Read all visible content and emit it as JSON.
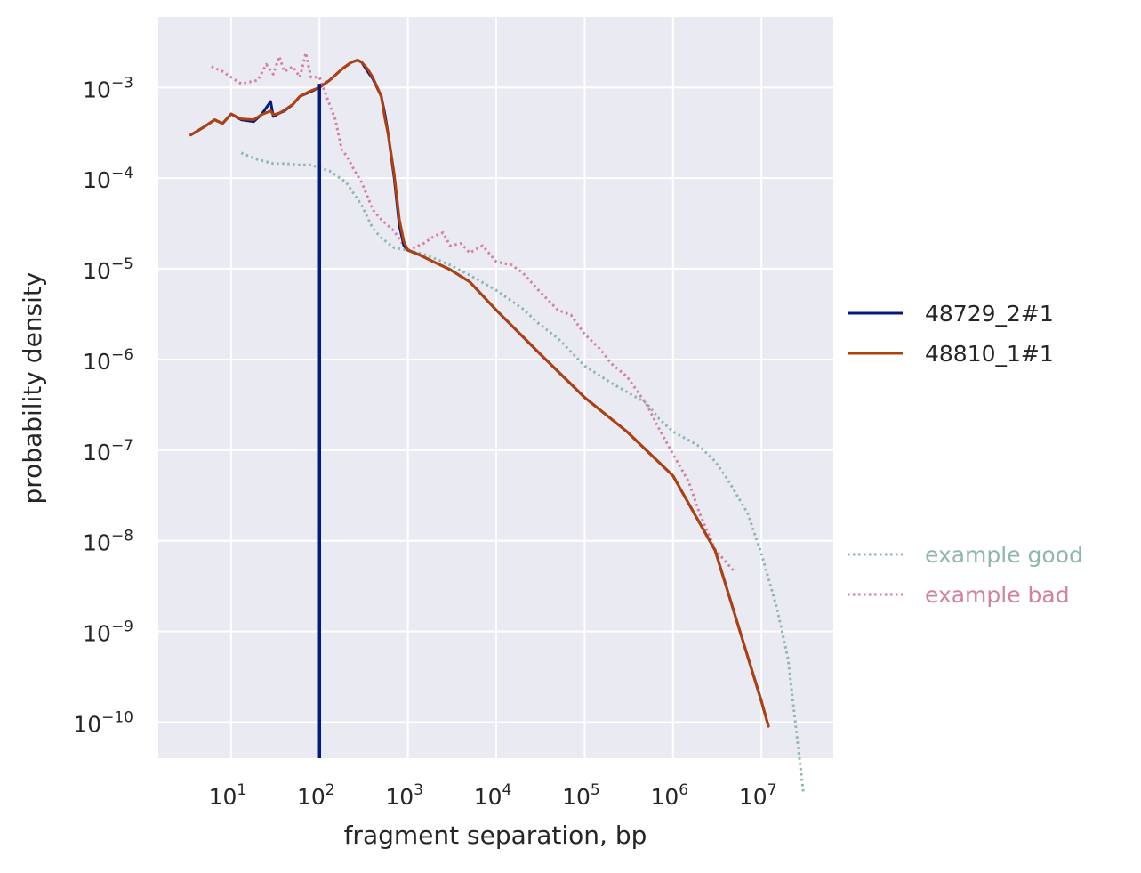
{
  "chart_data": {
    "type": "line",
    "title": "",
    "xlabel": "fragment separation, bp",
    "ylabel": "probability density",
    "x_scale": "log",
    "y_scale": "log",
    "xlim": [
      1.5,
      65000000
    ],
    "ylim": [
      4e-11,
      0.006
    ],
    "grid": true,
    "x_ticks": [
      {
        "base": "10",
        "exp": "1",
        "value": 10
      },
      {
        "base": "10",
        "exp": "2",
        "value": 100
      },
      {
        "base": "10",
        "exp": "3",
        "value": 1000
      },
      {
        "base": "10",
        "exp": "4",
        "value": 10000
      },
      {
        "base": "10",
        "exp": "5",
        "value": 100000
      },
      {
        "base": "10",
        "exp": "6",
        "value": 1000000
      },
      {
        "base": "10",
        "exp": "7",
        "value": 10000000
      }
    ],
    "y_ticks": [
      {
        "base": "10",
        "exp": "−3",
        "value": 0.001
      },
      {
        "base": "10",
        "exp": "−4",
        "value": 0.0001
      },
      {
        "base": "10",
        "exp": "−5",
        "value": 1e-05
      },
      {
        "base": "10",
        "exp": "−6",
        "value": 1e-06
      },
      {
        "base": "10",
        "exp": "−7",
        "value": 1e-07
      },
      {
        "base": "10",
        "exp": "−8",
        "value": 1e-08
      },
      {
        "base": "10",
        "exp": "−9",
        "value": 1e-09
      },
      {
        "base": "10",
        "exp": "−10",
        "value": 1e-10
      }
    ],
    "vertical_line": {
      "x": 100,
      "color": "#001c7f"
    },
    "legend": {
      "placement": "right",
      "groups": [
        [
          "48729_2#1",
          "48810_1#1"
        ],
        [
          "example good",
          "example bad"
        ]
      ]
    },
    "series": [
      {
        "name": "48729_2#1",
        "color": "#001c7f",
        "style": "solid",
        "x": [
          3.5,
          5,
          6.5,
          8,
          10,
          13,
          18,
          22,
          28,
          30,
          35,
          40,
          50,
          60,
          80,
          100,
          130,
          180,
          230,
          270,
          300,
          350,
          400,
          500,
          550,
          600,
          700,
          800,
          900,
          1000,
          1300,
          2000,
          3000,
          5000,
          10000,
          30000,
          100000,
          300000,
          1000000,
          3000000,
          10000000,
          12000000
        ],
        "y": [
          0.0003,
          0.00037,
          0.00044,
          0.0004,
          0.00051,
          0.00044,
          0.00042,
          0.0005,
          0.0007,
          0.00048,
          0.00052,
          0.00055,
          0.00065,
          0.0008,
          0.0009,
          0.001,
          0.0012,
          0.0016,
          0.0019,
          0.002,
          0.0019,
          0.0015,
          0.00125,
          0.0008,
          0.0005,
          0.0003,
          0.0001,
          3e-05,
          1.8e-05,
          1.6e-05,
          1.45e-05,
          1.18e-05,
          9.8e-06,
          7.2e-06,
          3.5e-06,
          1.2e-06,
          3.8e-07,
          1.6e-07,
          5.2e-08,
          7.8e-09,
          1.7e-10,
          9e-11
        ]
      },
      {
        "name": "48810_1#1",
        "color": "#b1400d",
        "style": "solid",
        "x": [
          3.5,
          5,
          6.5,
          8,
          10,
          13,
          18,
          22,
          28,
          30,
          35,
          40,
          50,
          60,
          80,
          100,
          130,
          180,
          230,
          270,
          300,
          350,
          400,
          500,
          550,
          600,
          700,
          800,
          900,
          1000,
          1300,
          2000,
          3000,
          5000,
          10000,
          30000,
          100000,
          300000,
          1000000,
          3000000,
          10000000,
          12000000
        ],
        "y": [
          0.0003,
          0.00037,
          0.00044,
          0.0004,
          0.00051,
          0.00045,
          0.00044,
          0.0005,
          0.00055,
          0.0005,
          0.00052,
          0.00056,
          0.00065,
          0.0008,
          0.00092,
          0.001,
          0.0012,
          0.0016,
          0.0019,
          0.002,
          0.0019,
          0.0016,
          0.0013,
          0.0008,
          0.00045,
          0.0003,
          0.00011,
          3.5e-05,
          2e-05,
          1.6e-05,
          1.45e-05,
          1.18e-05,
          9.8e-06,
          7.2e-06,
          3.5e-06,
          1.2e-06,
          3.8e-07,
          1.6e-07,
          5.2e-08,
          7.8e-09,
          1.7e-10,
          9e-11
        ]
      },
      {
        "name": "example good",
        "color": "#8fb6b0",
        "style": "dotted",
        "x": [
          13,
          20,
          30,
          40,
          60,
          80,
          100,
          130,
          200,
          300,
          400,
          500,
          700,
          1000,
          1500,
          2000,
          3000,
          5000,
          10000,
          20000,
          30000,
          50000,
          100000,
          200000,
          500000,
          700000,
          1000000,
          2000000,
          3000000,
          4000000,
          5000000,
          7000000,
          10000000,
          15000000,
          20000000,
          30000000
        ],
        "y": [
          0.00019,
          0.00016,
          0.000145,
          0.000145,
          0.00014,
          0.00014,
          0.00013,
          0.00012,
          9e-05,
          5e-05,
          2.8e-05,
          2.2e-05,
          1.7e-05,
          1.6e-05,
          1.45e-05,
          1.3e-05,
          1.1e-05,
          8.5e-06,
          5.8e-06,
          3.6e-06,
          2.5e-06,
          1.7e-06,
          8.5e-07,
          5.5e-07,
          3.3e-07,
          2.2e-07,
          1.6e-07,
          1.1e-07,
          7.5e-08,
          5e-08,
          3.5e-08,
          2e-08,
          7.2e-09,
          1.8e-09,
          5e-10,
          1.6e-11
        ]
      },
      {
        "name": "example bad",
        "color": "#d2829f",
        "style": "dotted",
        "x": [
          6,
          8,
          10,
          13,
          20,
          25,
          30,
          35,
          40,
          50,
          60,
          70,
          80,
          100,
          120,
          150,
          180,
          200,
          250,
          300,
          400,
          500,
          700,
          900,
          1000,
          1500,
          2000,
          2500,
          3000,
          4000,
          5000,
          7000,
          10000,
          15000,
          20000,
          30000,
          50000,
          70000,
          100000,
          150000,
          200000,
          300000,
          500000,
          700000,
          1000000,
          1500000,
          2000000,
          3000000,
          5000000
        ],
        "y": [
          0.0017,
          0.0015,
          0.0013,
          0.0011,
          0.0012,
          0.0018,
          0.0014,
          0.0022,
          0.0015,
          0.0017,
          0.0013,
          0.0024,
          0.0013,
          0.0013,
          0.0008,
          0.00045,
          0.0002,
          0.00018,
          0.00012,
          9e-05,
          4.5e-05,
          3.5e-05,
          2.6e-05,
          1.8e-05,
          1.6e-05,
          1.9e-05,
          2.3e-05,
          2.5e-05,
          1.8e-05,
          1.9e-05,
          1.5e-05,
          1.8e-05,
          1.2e-05,
          1.1e-05,
          9e-06,
          5.8e-06,
          3.5e-06,
          3.1e-06,
          1.9e-06,
          1.3e-06,
          9e-07,
          6.5e-07,
          3.2e-07,
          1.7e-07,
          9e-08,
          4.5e-08,
          2e-08,
          8e-09,
          4.5e-09
        ]
      }
    ]
  }
}
